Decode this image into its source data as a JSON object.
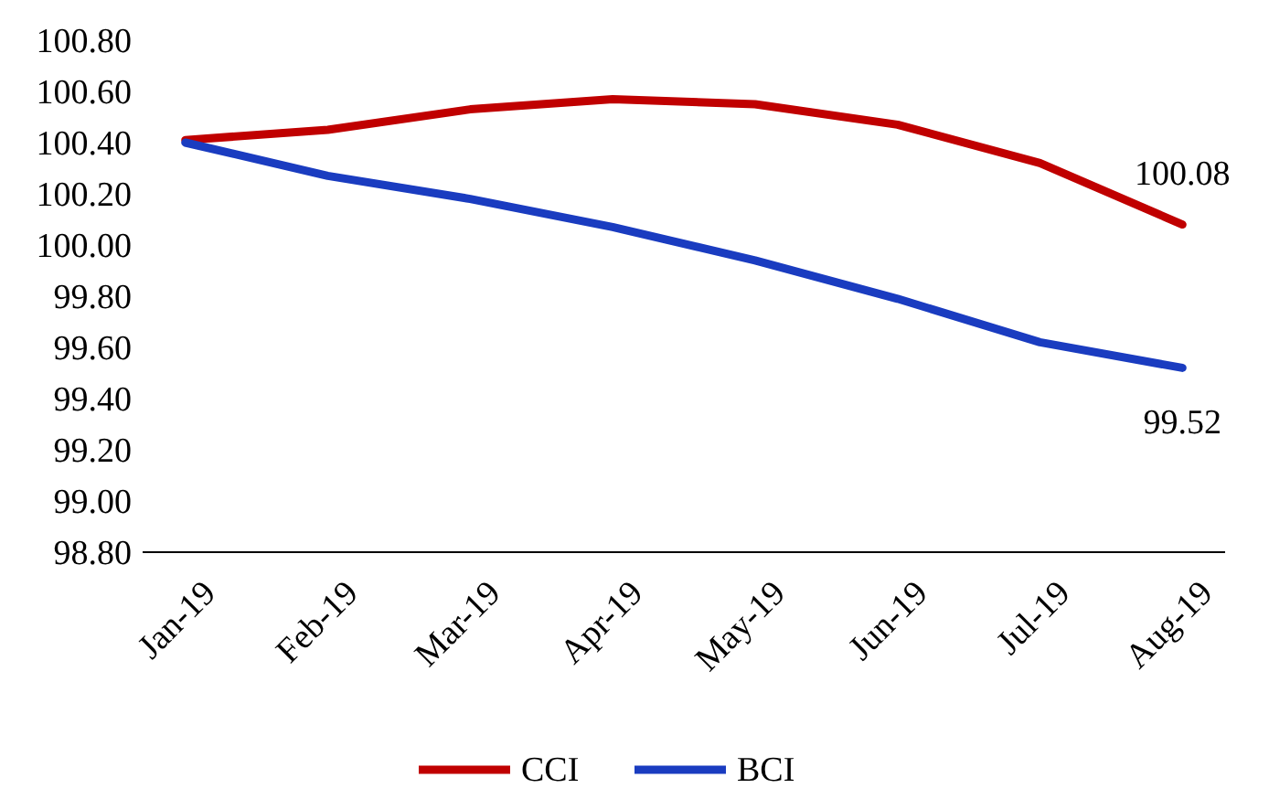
{
  "chart_data": {
    "type": "line",
    "categories": [
      "Jan-19",
      "Feb-19",
      "Mar-19",
      "Apr-19",
      "May-19",
      "Jun-19",
      "Jul-19",
      "Aug-19"
    ],
    "series": [
      {
        "name": "CCI",
        "color": "#c00000",
        "values": [
          100.41,
          100.45,
          100.53,
          100.57,
          100.55,
          100.47,
          100.32,
          100.08
        ]
      },
      {
        "name": "BCI",
        "color": "#1a3cc0",
        "values": [
          100.4,
          100.27,
          100.18,
          100.07,
          99.94,
          99.79,
          99.62,
          99.52
        ]
      }
    ],
    "ylim": [
      98.8,
      100.8
    ],
    "yticks": [
      {
        "value": 98.8,
        "label": "98.80"
      },
      {
        "value": 99.0,
        "label": "99.00"
      },
      {
        "value": 99.2,
        "label": "99.20"
      },
      {
        "value": 99.4,
        "label": "99.40"
      },
      {
        "value": 99.6,
        "label": "99.60"
      },
      {
        "value": 99.8,
        "label": "99.80"
      },
      {
        "value": 100.0,
        "label": "100.00"
      },
      {
        "value": 100.2,
        "label": "100.20"
      },
      {
        "value": 100.4,
        "label": "100.40"
      },
      {
        "value": 100.6,
        "label": "100.60"
      },
      {
        "value": 100.8,
        "label": "100.80"
      }
    ],
    "annotations": [
      {
        "text": "100.08",
        "x": "Aug-19",
        "y": 100.08
      },
      {
        "text": "99.52",
        "x": "Aug-19",
        "y": 99.52
      }
    ],
    "legend": "bottom",
    "grid": false,
    "marker": "none",
    "line_style": "solid"
  }
}
